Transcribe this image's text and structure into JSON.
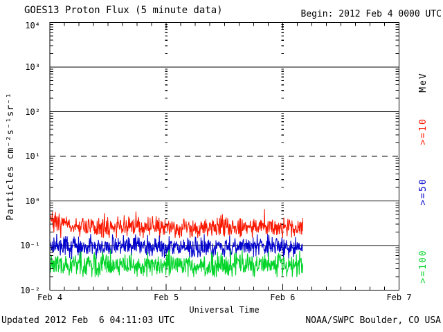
{
  "header": {
    "title": "GOES13 Proton Flux (5 minute data)",
    "begin_label": "Begin: 2012 Feb 4 0000 UTC"
  },
  "footer": {
    "updated": "Updated 2012 Feb  6 04:11:03 UTC",
    "attribution": "NOAA/SWPC Boulder, CO USA"
  },
  "colors": {
    "axis": "#000000",
    "background": "#ffffff",
    "ge10": "#fb1800",
    "ge50": "#0000cc",
    "ge100": "#00d428"
  },
  "chart_data": {
    "type": "line",
    "title": "GOES13 Proton Flux (5 minute data)",
    "begin_time": "2012 Feb 4 0000 UTC",
    "xlabel": "Universal Time",
    "ylabel": "Particles cm⁻²s⁻¹sr⁻¹",
    "unit_label": "MeV",
    "y_scale": "log10",
    "ylim": [
      0.01,
      10000
    ],
    "y_tick_exponents": [
      4,
      3,
      2,
      1,
      0,
      -1,
      -2
    ],
    "y_tick_labels": [
      "10⁴",
      "10³",
      "10²",
      "10¹",
      "10⁰",
      "10⁻¹",
      "10⁻²"
    ],
    "x_tick_labels": [
      "Feb 4",
      "Feb 5",
      "Feb 6",
      "Feb 7"
    ],
    "x_span_hours": 72,
    "x_minor_tick_hours": 3,
    "day_gridline_hours": [
      24,
      48
    ],
    "threshold_dashed_line_flux": 10,
    "grid": "solid-decade-lines, dotted-day-lines",
    "legend_position": "right-rotated",
    "cadence_minutes": 5,
    "data_start": "2012 Feb 4 00:00 UTC",
    "data_end": "2012 Feb 6 04:10 UTC",
    "data_end_hour": 52.17,
    "series": [
      {
        "label": ">=10",
        "name": ">=10 MeV protons",
        "color": "#fb1800",
        "sampled_hours": [
          0,
          6,
          12,
          18,
          24,
          30,
          36,
          42,
          48,
          52
        ],
        "sampled_flux": [
          0.32,
          0.26,
          0.25,
          0.27,
          0.26,
          0.25,
          0.26,
          0.27,
          0.26,
          0.25
        ],
        "flux_range": [
          0.15,
          0.65
        ],
        "log10_jitter": 0.11,
        "spike_prob": 0.06,
        "spike_log10": 0.18,
        "start_spike_log10": 0.25,
        "seed": 7
      },
      {
        "label": ">=50",
        "name": ">=50 MeV protons",
        "color": "#0000cc",
        "sampled_hours": [
          0,
          6,
          12,
          18,
          24,
          30,
          36,
          42,
          48,
          52
        ],
        "sampled_flux": [
          0.1,
          0.09,
          0.09,
          0.1,
          0.09,
          0.09,
          0.09,
          0.1,
          0.09,
          0.09
        ],
        "flux_range": [
          0.05,
          0.18
        ],
        "log10_jitter": 0.11,
        "spike_prob": 0.05,
        "spike_log10": 0.18,
        "start_spike_log10": 0,
        "seed": 42
      },
      {
        "label": ">=100",
        "name": ">=100 MeV protons",
        "color": "#00d428",
        "sampled_hours": [
          0,
          6,
          12,
          18,
          24,
          30,
          36,
          42,
          48,
          52
        ],
        "sampled_flux": [
          0.038,
          0.036,
          0.037,
          0.036,
          0.037,
          0.035,
          0.036,
          0.037,
          0.036,
          0.035
        ],
        "flux_range": [
          0.02,
          0.08
        ],
        "log10_jitter": 0.13,
        "spike_prob": 0.05,
        "spike_log10": 0.2,
        "start_spike_log10": 0,
        "seed": 99
      }
    ]
  }
}
